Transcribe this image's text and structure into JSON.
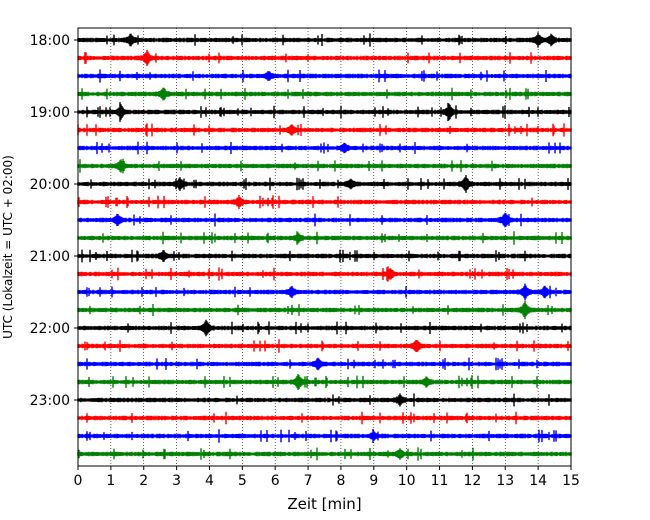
{
  "chart_data": {
    "type": "line",
    "subtype": "helicorder",
    "title": "",
    "xlabel": "Zeit  [min]",
    "ylabel": "UTC (Lokalzeit = UTC + 02:00)",
    "xlim": [
      0,
      15
    ],
    "x_ticks": [
      0,
      1,
      2,
      3,
      4,
      5,
      6,
      7,
      8,
      9,
      10,
      11,
      12,
      13,
      14,
      15
    ],
    "y_tick_labels": [
      "18:00",
      "19:00",
      "20:00",
      "21:00",
      "22:00",
      "23:00"
    ],
    "grid": "vertical dotted at each minute",
    "trace_start_time": "18:00",
    "trace_interval_minutes": 15,
    "trace_count": 24,
    "trace_colors": [
      "#000000",
      "#ff0000",
      "#0000ff",
      "#008000"
    ],
    "events": [
      {
        "trace": 0,
        "minute": 1.6,
        "amplitude": 0.7
      },
      {
        "trace": 0,
        "minute": 14.0,
        "amplitude": 0.7
      },
      {
        "trace": 0,
        "minute": 14.4,
        "amplitude": 0.6
      },
      {
        "trace": 1,
        "minute": 2.1,
        "amplitude": 0.8
      },
      {
        "trace": 2,
        "minute": 5.8,
        "amplitude": 0.5
      },
      {
        "trace": 3,
        "minute": 2.6,
        "amplitude": 0.7
      },
      {
        "trace": 4,
        "minute": 1.3,
        "amplitude": 0.8
      },
      {
        "trace": 4,
        "minute": 11.3,
        "amplitude": 0.9
      },
      {
        "trace": 5,
        "minute": 6.5,
        "amplitude": 0.6
      },
      {
        "trace": 6,
        "minute": 8.1,
        "amplitude": 0.5
      },
      {
        "trace": 7,
        "minute": 1.3,
        "amplitude": 0.7
      },
      {
        "trace": 8,
        "minute": 3.1,
        "amplitude": 0.6
      },
      {
        "trace": 8,
        "minute": 8.3,
        "amplitude": 0.5
      },
      {
        "trace": 8,
        "minute": 11.8,
        "amplitude": 0.9
      },
      {
        "trace": 9,
        "minute": 4.9,
        "amplitude": 0.6
      },
      {
        "trace": 10,
        "minute": 1.2,
        "amplitude": 0.6
      },
      {
        "trace": 10,
        "minute": 13.0,
        "amplitude": 0.8
      },
      {
        "trace": 11,
        "minute": 6.7,
        "amplitude": 0.5
      },
      {
        "trace": 12,
        "minute": 2.6,
        "amplitude": 0.6
      },
      {
        "trace": 13,
        "minute": 9.5,
        "amplitude": 0.6
      },
      {
        "trace": 14,
        "minute": 6.5,
        "amplitude": 0.6
      },
      {
        "trace": 14,
        "minute": 13.6,
        "amplitude": 0.8
      },
      {
        "trace": 14,
        "minute": 14.2,
        "amplitude": 0.6
      },
      {
        "trace": 15,
        "minute": 13.6,
        "amplitude": 0.9
      },
      {
        "trace": 16,
        "minute": 3.9,
        "amplitude": 0.9
      },
      {
        "trace": 17,
        "minute": 10.3,
        "amplitude": 0.7
      },
      {
        "trace": 18,
        "minute": 7.3,
        "amplitude": 0.6
      },
      {
        "trace": 19,
        "minute": 6.7,
        "amplitude": 0.9
      },
      {
        "trace": 19,
        "minute": 10.6,
        "amplitude": 0.5
      },
      {
        "trace": 20,
        "minute": 9.8,
        "amplitude": 0.6
      },
      {
        "trace": 22,
        "minute": 9.0,
        "amplitude": 0.4
      },
      {
        "trace": 23,
        "minute": 9.8,
        "amplitude": 0.5
      }
    ]
  }
}
